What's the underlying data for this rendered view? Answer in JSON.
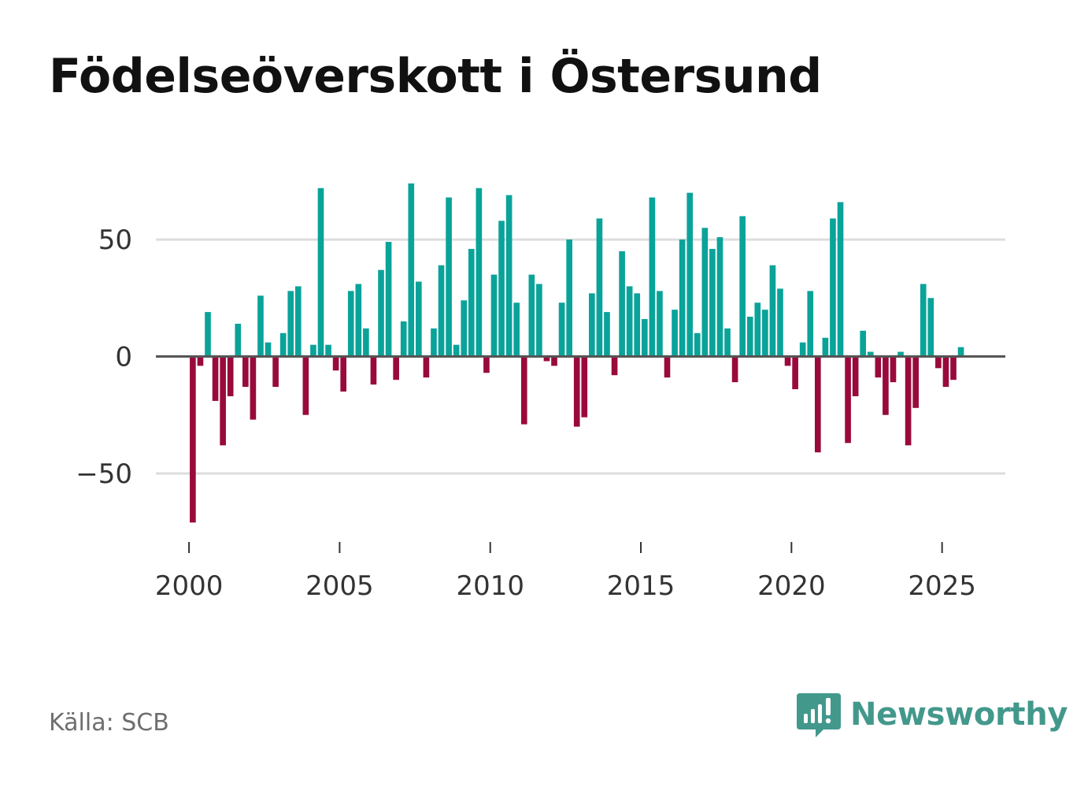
{
  "title": "Födelseöverskott i Östersund",
  "source": "Källa: SCB",
  "brand": {
    "name": "Newsworthy",
    "icon": "bar-chart-speech-bubble-icon",
    "color": "#43988c"
  },
  "colors": {
    "positive": "#0aa39a",
    "negative": "#990a3c",
    "grid": "#dddddd",
    "zero_line": "#555555",
    "text": "#333333"
  },
  "chart_data": {
    "type": "bar",
    "title": "Födelseöverskott i Östersund",
    "xlabel": "",
    "ylabel": "",
    "x_range": [
      1998.9,
      2027.1
    ],
    "ylim": [
      -80,
      80
    ],
    "x_ticks": [
      2000,
      2005,
      2010,
      2015,
      2020,
      2025
    ],
    "x_tick_labels": [
      "2000",
      "2005",
      "2010",
      "2015",
      "2020",
      "2025"
    ],
    "y_ticks": [
      -50,
      0,
      50
    ],
    "y_tick_labels": [
      "−50",
      "0",
      "50"
    ],
    "bar_width": 0.2,
    "series": [
      {
        "name": "Födelseöverskott",
        "x": [
          2000.125,
          2000.375,
          2000.625,
          2000.875,
          2001.125,
          2001.375,
          2001.625,
          2001.875,
          2002.125,
          2002.375,
          2002.625,
          2002.875,
          2003.125,
          2003.375,
          2003.625,
          2003.875,
          2004.125,
          2004.375,
          2004.625,
          2004.875,
          2005.125,
          2005.375,
          2005.625,
          2005.875,
          2006.125,
          2006.375,
          2006.625,
          2006.875,
          2007.125,
          2007.375,
          2007.625,
          2007.875,
          2008.125,
          2008.375,
          2008.625,
          2008.875,
          2009.125,
          2009.375,
          2009.625,
          2009.875,
          2010.125,
          2010.375,
          2010.625,
          2010.875,
          2011.125,
          2011.375,
          2011.625,
          2011.875,
          2012.125,
          2012.375,
          2012.625,
          2012.875,
          2013.125,
          2013.375,
          2013.625,
          2013.875,
          2014.125,
          2014.375,
          2014.625,
          2014.875,
          2015.125,
          2015.375,
          2015.625,
          2015.875,
          2016.125,
          2016.375,
          2016.625,
          2016.875,
          2017.125,
          2017.375,
          2017.625,
          2017.875,
          2018.125,
          2018.375,
          2018.625,
          2018.875,
          2019.125,
          2019.375,
          2019.625,
          2019.875,
          2020.125,
          2020.375,
          2020.625,
          2020.875,
          2021.125,
          2021.375,
          2021.625,
          2021.875,
          2022.125,
          2022.375,
          2022.625,
          2022.875,
          2023.125,
          2023.375,
          2023.625,
          2023.875,
          2024.125,
          2024.375,
          2024.625,
          2024.875,
          2025.125,
          2025.375,
          2025.625
        ],
        "values": [
          -71,
          -4,
          19,
          -19,
          -38,
          -17,
          14,
          -13,
          -27,
          26,
          6,
          -13,
          10,
          28,
          30,
          -25,
          5,
          72,
          5,
          -6,
          -15,
          28,
          31,
          12,
          -12,
          37,
          49,
          -10,
          15,
          74,
          32,
          -9,
          12,
          39,
          68,
          5,
          24,
          46,
          72,
          -7,
          35,
          58,
          69,
          23,
          -29,
          35,
          31,
          -2,
          -4,
          23,
          50,
          -30,
          -26,
          27,
          59,
          19,
          -8,
          45,
          30,
          27,
          16,
          68,
          28,
          -9,
          20,
          50,
          70,
          10,
          55,
          46,
          51,
          12,
          -11,
          60,
          17,
          23,
          20,
          39,
          29,
          -4,
          -14,
          6,
          28,
          -41,
          8,
          59,
          66,
          -37,
          -17,
          11,
          2,
          -9,
          -25,
          -11,
          2,
          -38,
          -22,
          31,
          25,
          -5,
          -13,
          -10,
          4
        ]
      }
    ]
  }
}
